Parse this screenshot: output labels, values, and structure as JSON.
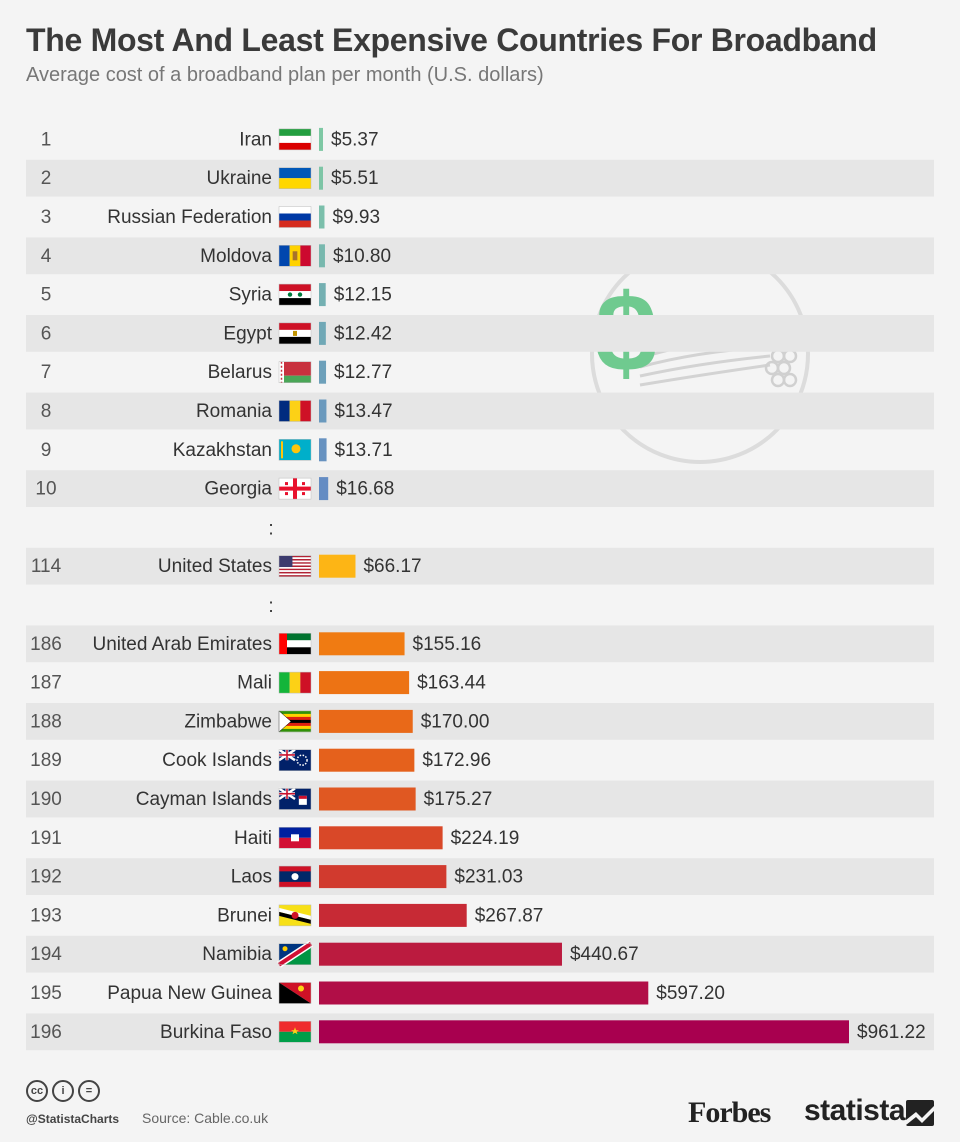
{
  "header": {
    "title": "The Most And Least Expensive Countries For Broadband",
    "subtitle": "Average cost of a broadband plan per month (U.S. dollars)"
  },
  "chart_data": {
    "type": "bar",
    "orientation": "horizontal",
    "title": "The Most And Least Expensive Countries For Broadband",
    "subtitle": "Average cost of a broadband plan per month (U.S. dollars)",
    "value_prefix": "$",
    "xlim": [
      0,
      961.22
    ],
    "gap_marker": ":",
    "rows": [
      {
        "type": "bar",
        "rank": "1",
        "country": "Iran",
        "value": 5.37,
        "label": "$5.37",
        "color": "#7ec8a4",
        "flag": "iran-flag"
      },
      {
        "type": "bar",
        "rank": "2",
        "country": "Ukraine",
        "value": 5.51,
        "label": "$5.51",
        "color": "#7ec5a6",
        "flag": "ukraine-flag"
      },
      {
        "type": "bar",
        "rank": "3",
        "country": "Russian Federation",
        "value": 9.93,
        "label": "$9.93",
        "color": "#7bbfab",
        "flag": "russia-flag"
      },
      {
        "type": "bar",
        "rank": "4",
        "country": "Moldova",
        "value": 10.8,
        "label": "$10.80",
        "color": "#78b8ae",
        "flag": "moldova-flag"
      },
      {
        "type": "bar",
        "rank": "5",
        "country": "Syria",
        "value": 12.15,
        "label": "$12.15",
        "color": "#74b0b2",
        "flag": "syria-flag"
      },
      {
        "type": "bar",
        "rank": "6",
        "country": "Egypt",
        "value": 12.42,
        "label": "$12.42",
        "color": "#70a8b6",
        "flag": "egypt-flag"
      },
      {
        "type": "bar",
        "rank": "7",
        "country": "Belarus",
        "value": 12.77,
        "label": "$12.77",
        "color": "#6da0ba",
        "flag": "belarus-flag"
      },
      {
        "type": "bar",
        "rank": "8",
        "country": "Romania",
        "value": 13.47,
        "label": "$13.47",
        "color": "#6a99bd",
        "flag": "romania-flag"
      },
      {
        "type": "bar",
        "rank": "9",
        "country": "Kazakhstan",
        "value": 13.71,
        "label": "$13.71",
        "color": "#6792c0",
        "flag": "kazakhstan-flag"
      },
      {
        "type": "bar",
        "rank": "10",
        "country": "Georgia",
        "value": 16.68,
        "label": "$16.68",
        "color": "#648cc3",
        "flag": "georgia-flag"
      },
      {
        "type": "gap"
      },
      {
        "type": "bar",
        "rank": "114",
        "country": "United States",
        "value": 66.17,
        "label": "$66.17",
        "color": "#fdb515",
        "flag": "usa-flag"
      },
      {
        "type": "gap"
      },
      {
        "type": "bar",
        "rank": "186",
        "country": "United Arab Emirates",
        "value": 155.16,
        "label": "$155.16",
        "color": "#f07b12",
        "flag": "uae-flag"
      },
      {
        "type": "bar",
        "rank": "187",
        "country": "Mali",
        "value": 163.44,
        "label": "$163.44",
        "color": "#ed7314",
        "flag": "mali-flag"
      },
      {
        "type": "bar",
        "rank": "188",
        "country": "Zimbabwe",
        "value": 170.0,
        "label": "$170.00",
        "color": "#e96918",
        "flag": "zimbabwe-flag"
      },
      {
        "type": "bar",
        "rank": "189",
        "country": "Cook Islands",
        "value": 172.96,
        "label": "$172.96",
        "color": "#e5611c",
        "flag": "cook-islands-flag"
      },
      {
        "type": "bar",
        "rank": "190",
        "country": "Cayman Islands",
        "value": 175.27,
        "label": "$175.27",
        "color": "#e05822",
        "flag": "cayman-islands-flag"
      },
      {
        "type": "bar",
        "rank": "191",
        "country": "Haiti",
        "value": 224.19,
        "label": "$224.19",
        "color": "#d94828",
        "flag": "haiti-flag"
      },
      {
        "type": "bar",
        "rank": "192",
        "country": "Laos",
        "value": 231.03,
        "label": "$231.03",
        "color": "#d13a2e",
        "flag": "laos-flag"
      },
      {
        "type": "bar",
        "rank": "193",
        "country": "Brunei",
        "value": 267.87,
        "label": "$267.87",
        "color": "#c72a35",
        "flag": "brunei-flag"
      },
      {
        "type": "bar",
        "rank": "194",
        "country": "Namibia",
        "value": 440.67,
        "label": "$440.67",
        "color": "#bb1b3f",
        "flag": "namibia-flag"
      },
      {
        "type": "bar",
        "rank": "195",
        "country": "Papua New Guinea",
        "value": 597.2,
        "label": "$597.20",
        "color": "#b10e47",
        "flag": "png-flag"
      },
      {
        "type": "bar",
        "rank": "196",
        "country": "Burkina Faso",
        "value": 961.22,
        "label": "$961.22",
        "color": "#a8004f",
        "flag": "burkina-faso-flag"
      }
    ],
    "decoration": "dollar-cable-icon"
  },
  "footer": {
    "handle": "@StatistaCharts",
    "source": "Source: Cable.co.uk",
    "cc_icons": [
      "cc",
      "i",
      "="
    ],
    "forbes": "Forbes",
    "statista": "statista"
  }
}
